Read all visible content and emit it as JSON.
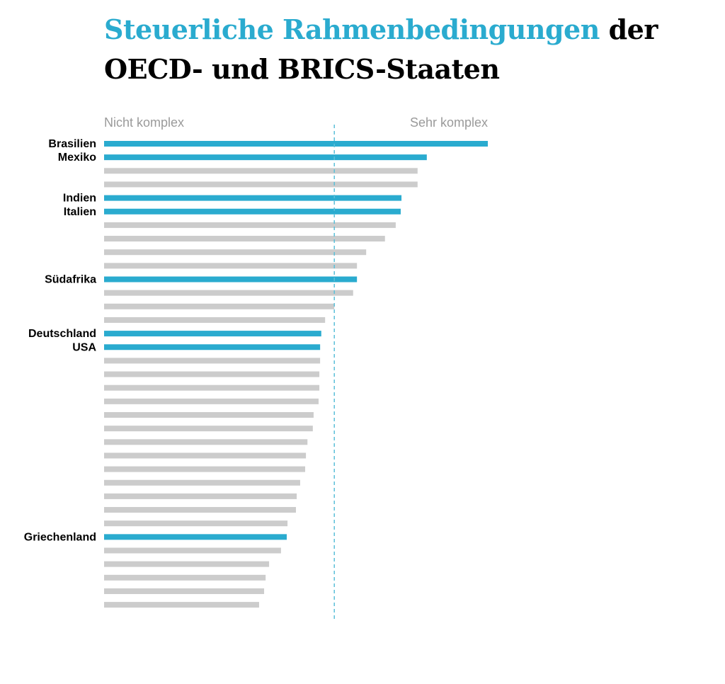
{
  "title": {
    "highlight": "Steuerliche Rahmenbedingungen",
    "rest_line1": " der",
    "line2": "OECD- und BRICS-Staaten"
  },
  "colors": {
    "highlight": "#2aabcf",
    "other": "#cccccc",
    "reference_line": "#5bbfd9",
    "label": "#9a9a9a"
  },
  "chart_data": {
    "type": "bar",
    "orientation": "horizontal",
    "scale_min_label": "Nicht komplex",
    "scale_max_label": "Sehr komplex",
    "xlim": [
      0,
      100
    ],
    "reference_line": 60,
    "grid": false,
    "bars": [
      {
        "label": "Brasilien",
        "value": 100,
        "highlight": true
      },
      {
        "label": "Mexiko",
        "value": 84.1,
        "highlight": true
      },
      {
        "label": "",
        "value": 81.7,
        "highlight": false
      },
      {
        "label": "",
        "value": 81.7,
        "highlight": false
      },
      {
        "label": "Indien",
        "value": 77.5,
        "highlight": true
      },
      {
        "label": "Italien",
        "value": 77.3,
        "highlight": true
      },
      {
        "label": "",
        "value": 76.0,
        "highlight": false
      },
      {
        "label": "",
        "value": 73.2,
        "highlight": false
      },
      {
        "label": "",
        "value": 68.3,
        "highlight": false
      },
      {
        "label": "",
        "value": 65.9,
        "highlight": false
      },
      {
        "label": "Südafrika",
        "value": 65.9,
        "highlight": true
      },
      {
        "label": "",
        "value": 64.9,
        "highlight": false
      },
      {
        "label": "",
        "value": 60.0,
        "highlight": false
      },
      {
        "label": "",
        "value": 57.6,
        "highlight": false
      },
      {
        "label": "Deutschland",
        "value": 56.6,
        "highlight": true
      },
      {
        "label": "USA",
        "value": 56.3,
        "highlight": true
      },
      {
        "label": "",
        "value": 56.3,
        "highlight": false
      },
      {
        "label": "",
        "value": 56.1,
        "highlight": false
      },
      {
        "label": "",
        "value": 56.1,
        "highlight": false
      },
      {
        "label": "",
        "value": 55.9,
        "highlight": false
      },
      {
        "label": "",
        "value": 54.6,
        "highlight": false
      },
      {
        "label": "",
        "value": 54.4,
        "highlight": false
      },
      {
        "label": "",
        "value": 53.0,
        "highlight": false
      },
      {
        "label": "",
        "value": 52.6,
        "highlight": false
      },
      {
        "label": "",
        "value": 52.4,
        "highlight": false
      },
      {
        "label": "",
        "value": 51.1,
        "highlight": false
      },
      {
        "label": "",
        "value": 50.2,
        "highlight": false
      },
      {
        "label": "",
        "value": 50.0,
        "highlight": false
      },
      {
        "label": "",
        "value": 47.8,
        "highlight": false
      },
      {
        "label": "Griechenland",
        "value": 47.6,
        "highlight": true
      },
      {
        "label": "",
        "value": 46.1,
        "highlight": false
      },
      {
        "label": "",
        "value": 43.0,
        "highlight": false
      },
      {
        "label": "",
        "value": 42.1,
        "highlight": false
      },
      {
        "label": "",
        "value": 41.7,
        "highlight": false
      },
      {
        "label": "",
        "value": 40.4,
        "highlight": false
      }
    ]
  }
}
